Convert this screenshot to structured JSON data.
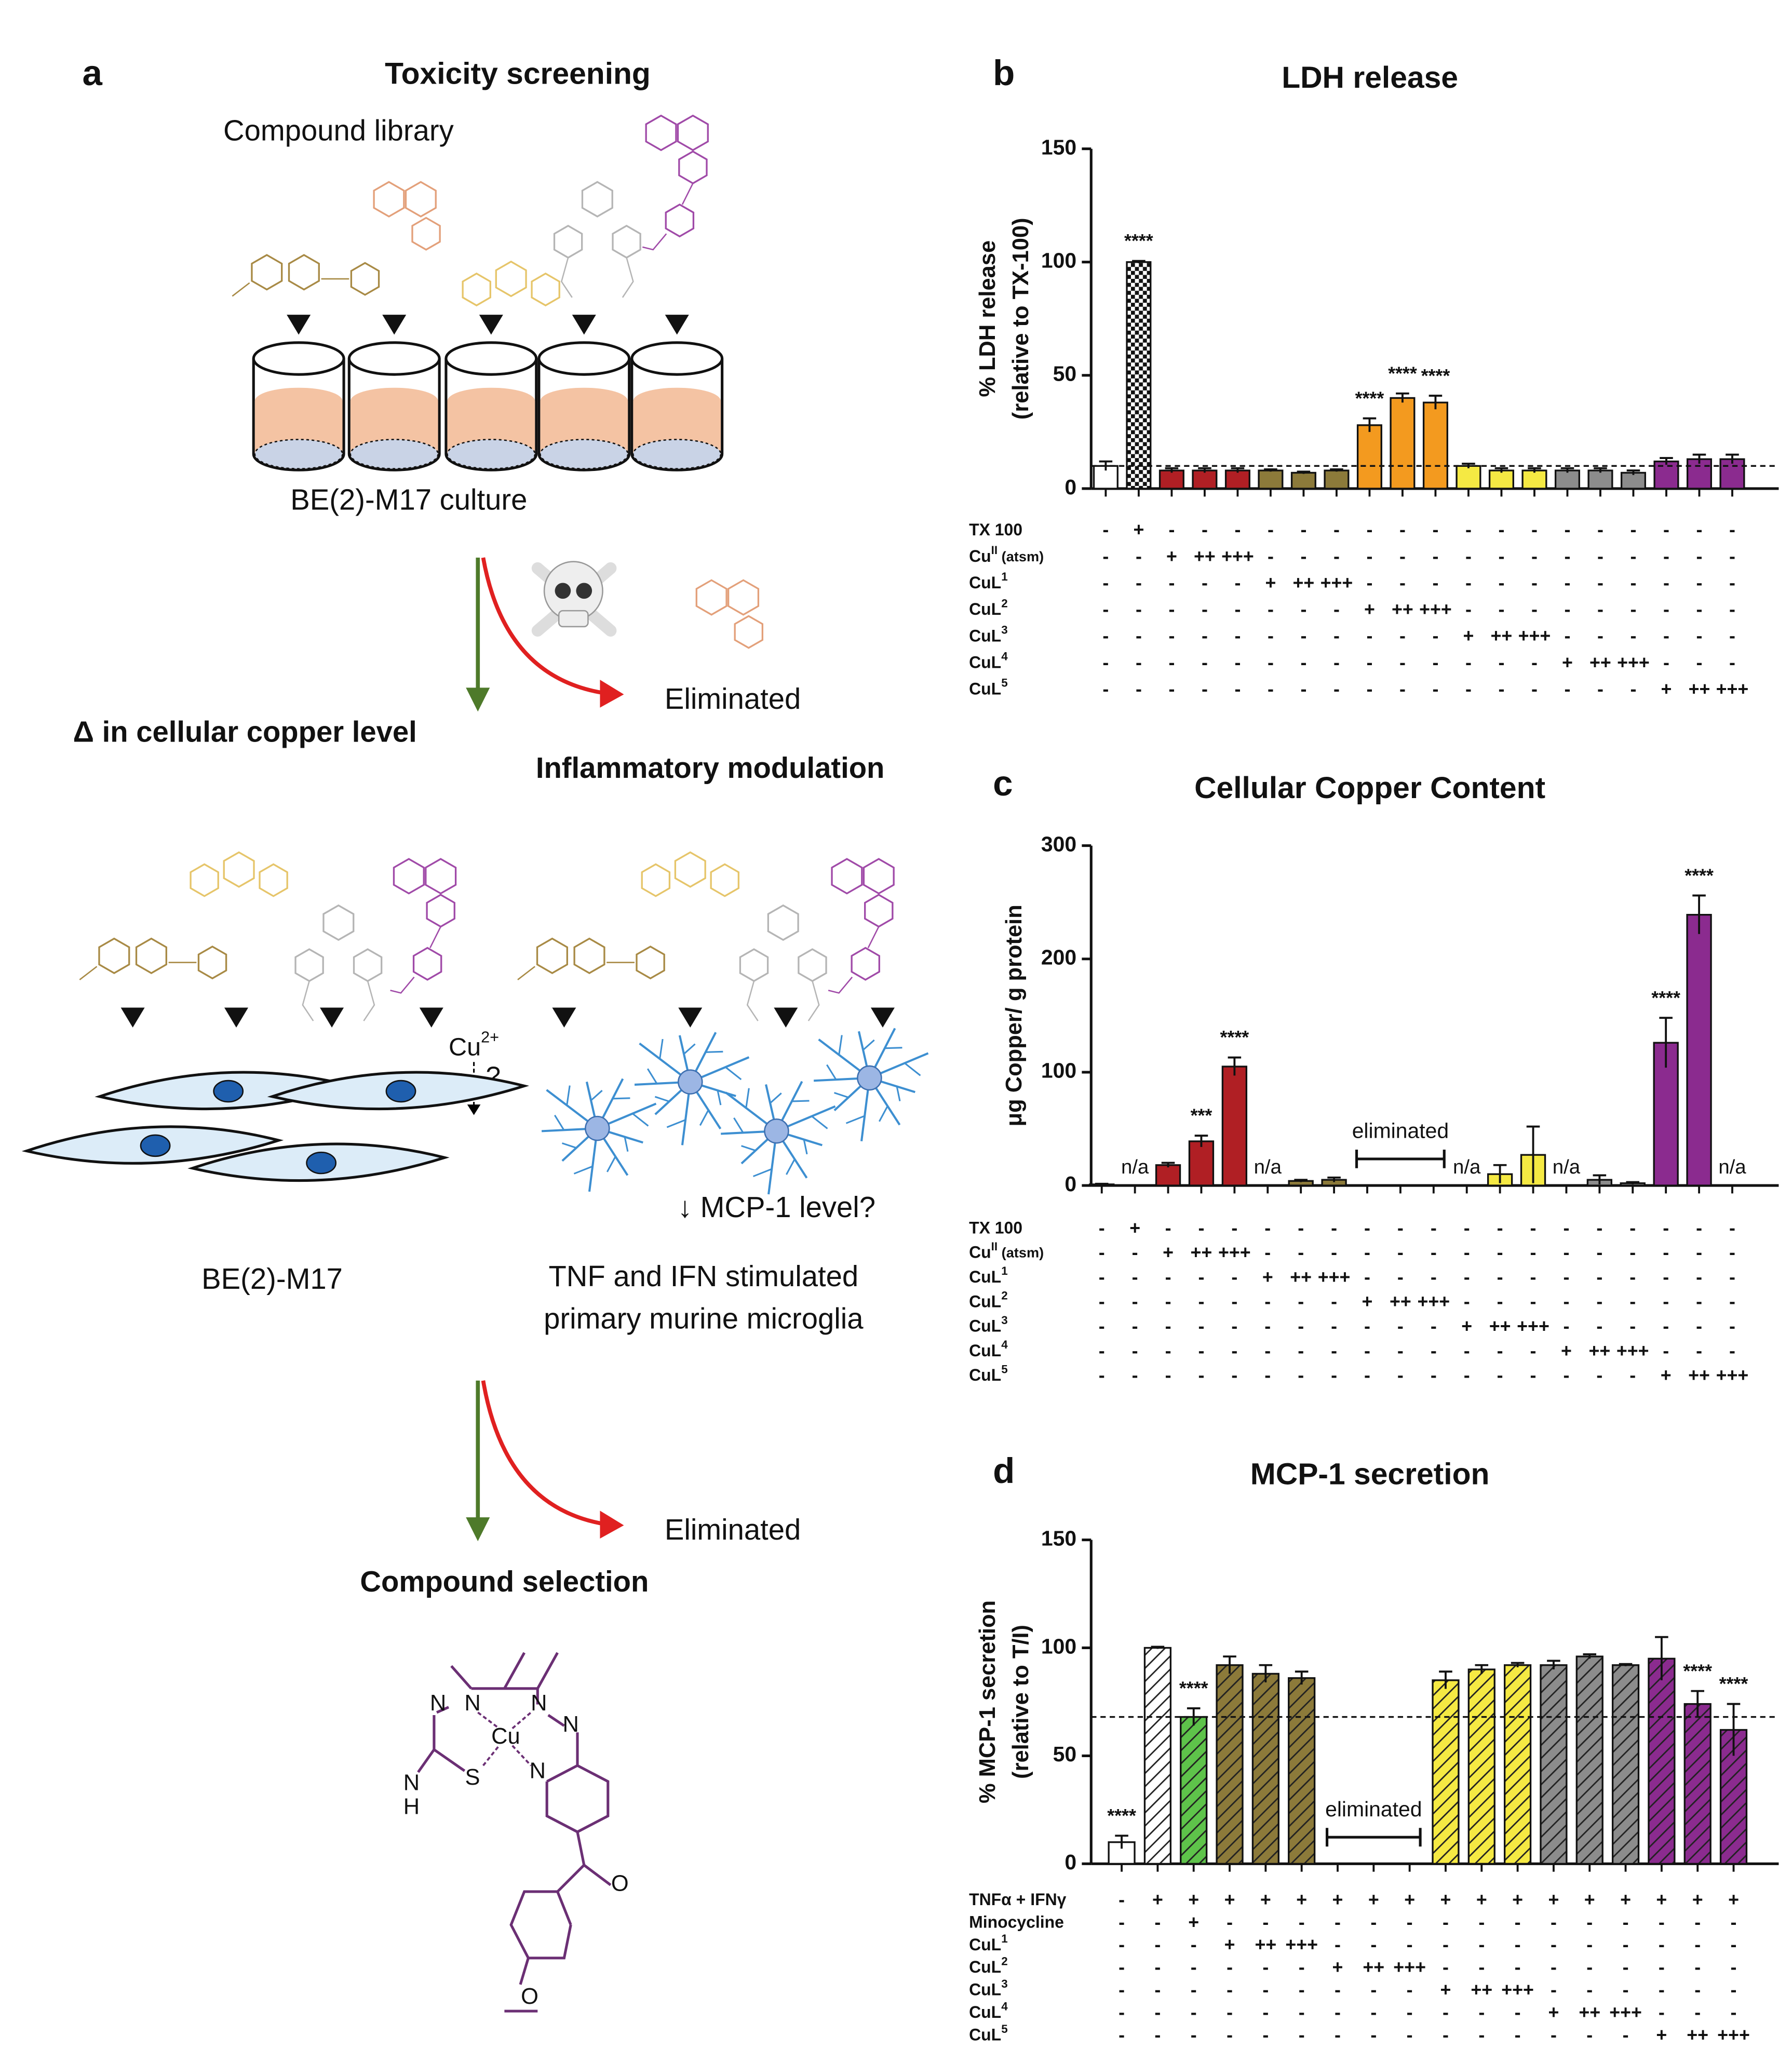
{
  "panel_a": {
    "label": "a",
    "title": "Toxicity screening",
    "library": "Compound library",
    "culture": "BE(2)-M17 culture",
    "eliminated_first": "Eliminated",
    "copper_step": "Δ in cellular copper level",
    "inflammation_step": "Inflammatory modulation",
    "copper_ion": {
      "base": "Cu",
      "sup": "2+"
    },
    "question": "?",
    "mcp_question": "↓ MCP-1 level?",
    "cell_line": "BE(2)-M17",
    "microglia": [
      "TNF and IFN stimulated",
      "primary murine microglia"
    ],
    "eliminated_second": "Eliminated",
    "selection": "Compound selection",
    "selected_atoms": [
      "N",
      "N",
      "N",
      "N",
      "Cu",
      "S",
      "N",
      "N",
      "H",
      "O",
      "O"
    ]
  },
  "chart_data": [
    {
      "type": "bar",
      "label": "b",
      "title": "LDH release",
      "ylabel": [
        "% LDH release",
        "(relative to TX-100)"
      ],
      "ylim": [
        0,
        150
      ],
      "yticks": [
        0,
        50,
        100,
        150
      ],
      "values": [
        10,
        100,
        8,
        8,
        8,
        8,
        7,
        8,
        28,
        40,
        38,
        10,
        8,
        8,
        8,
        8,
        7,
        12,
        13,
        13
      ],
      "errors": [
        2,
        0.5,
        1,
        1,
        1,
        0.5,
        0.5,
        0.5,
        3,
        2,
        3,
        1,
        1,
        1,
        1,
        1,
        1,
        1.5,
        2,
        2
      ],
      "colors": [
        "#ffffff",
        "#ffffff",
        "#b01f24",
        "#b01f24",
        "#b01f24",
        "#8c7a3a",
        "#8c7a3a",
        "#8c7a3a",
        "#f39a1f",
        "#f39a1f",
        "#f39a1f",
        "#f5e943",
        "#f5e943",
        "#f5e943",
        "#8c8c8c",
        "#8c8c8c",
        "#8c8c8c",
        "#8b2b8f",
        "#8b2b8f",
        "#8b2b8f"
      ],
      "fills": [
        "solid",
        "checker",
        "solid",
        "solid",
        "solid",
        "solid",
        "solid",
        "solid",
        "solid",
        "solid",
        "solid",
        "solid",
        "solid",
        "solid",
        "solid",
        "solid",
        "solid",
        "solid",
        "solid",
        "solid"
      ],
      "significance": [
        null,
        "****",
        null,
        null,
        null,
        null,
        null,
        null,
        "****",
        "****",
        "****",
        null,
        null,
        null,
        null,
        null,
        null,
        null,
        null,
        null
      ],
      "reference_line": 10,
      "treatments": [
        {
          "label": {
            "base": "TX 100"
          },
          "marks": [
            "-",
            "+",
            "-",
            "-",
            "-",
            "-",
            "-",
            "-",
            "-",
            "-",
            "-",
            "-",
            "-",
            "-",
            "-",
            "-",
            "-",
            "-",
            "-",
            "-"
          ]
        },
        {
          "label": {
            "base": "Cu",
            "sup": "II",
            "rest": " (atsm)"
          },
          "marks": [
            "-",
            "-",
            "+",
            "++",
            "+++",
            "-",
            "-",
            "-",
            "-",
            "-",
            "-",
            "-",
            "-",
            "-",
            "-",
            "-",
            "-",
            "-",
            "-",
            "-"
          ]
        },
        {
          "label": {
            "base": "CuL",
            "sup": "1"
          },
          "marks": [
            "-",
            "-",
            "-",
            "-",
            "-",
            "+",
            "++",
            "+++",
            "-",
            "-",
            "-",
            "-",
            "-",
            "-",
            "-",
            "-",
            "-",
            "-",
            "-",
            "-"
          ]
        },
        {
          "label": {
            "base": "CuL",
            "sup": "2"
          },
          "marks": [
            "-",
            "-",
            "-",
            "-",
            "-",
            "-",
            "-",
            "-",
            "+",
            "++",
            "+++",
            "-",
            "-",
            "-",
            "-",
            "-",
            "-",
            "-",
            "-",
            "-"
          ]
        },
        {
          "label": {
            "base": "CuL",
            "sup": "3"
          },
          "marks": [
            "-",
            "-",
            "-",
            "-",
            "-",
            "-",
            "-",
            "-",
            "-",
            "-",
            "-",
            "+",
            "++",
            "+++",
            "-",
            "-",
            "-",
            "-",
            "-",
            "-"
          ]
        },
        {
          "label": {
            "base": "CuL",
            "sup": "4"
          },
          "marks": [
            "-",
            "-",
            "-",
            "-",
            "-",
            "-",
            "-",
            "-",
            "-",
            "-",
            "-",
            "-",
            "-",
            "-",
            "+",
            "++",
            "+++",
            "-",
            "-",
            "-"
          ]
        },
        {
          "label": {
            "base": "CuL",
            "sup": "5"
          },
          "marks": [
            "-",
            "-",
            "-",
            "-",
            "-",
            "-",
            "-",
            "-",
            "-",
            "-",
            "-",
            "-",
            "-",
            "-",
            "-",
            "-",
            "-",
            "+",
            "++",
            "+++"
          ]
        }
      ]
    },
    {
      "type": "bar",
      "label": "c",
      "title": "Cellular Copper Content",
      "ylabel": [
        "μg Copper/ g protein"
      ],
      "ylim": [
        0,
        300
      ],
      "yticks": [
        0,
        100,
        200,
        300
      ],
      "values": [
        1,
        null,
        18,
        39,
        105,
        null,
        4,
        5,
        null,
        null,
        null,
        null,
        10,
        27,
        null,
        5,
        2,
        126,
        239,
        null
      ],
      "value_labels": [
        null,
        "n/a",
        null,
        null,
        null,
        "n/a",
        null,
        null,
        null,
        null,
        null,
        "n/a",
        null,
        null,
        "n/a",
        null,
        null,
        null,
        null,
        "n/a"
      ],
      "errors": [
        0.5,
        null,
        2,
        5,
        8,
        null,
        1,
        2,
        null,
        null,
        null,
        null,
        8,
        25,
        null,
        4,
        1,
        22,
        17,
        null
      ],
      "colors": [
        "#ffffff",
        "#ffffff",
        "#b01f24",
        "#b01f24",
        "#b01f24",
        "#8c7a3a",
        "#8c7a3a",
        "#8c7a3a",
        "#f39a1f",
        "#f39a1f",
        "#f39a1f",
        "#f5e943",
        "#f5e943",
        "#f5e943",
        "#8c8c8c",
        "#8c8c8c",
        "#8c8c8c",
        "#8b2b8f",
        "#8b2b8f",
        "#8b2b8f"
      ],
      "fills": [
        "solid",
        "solid",
        "solid",
        "solid",
        "solid",
        "solid",
        "solid",
        "solid",
        "solid",
        "solid",
        "solid",
        "solid",
        "solid",
        "solid",
        "solid",
        "solid",
        "solid",
        "solid",
        "solid",
        "solid"
      ],
      "significance": [
        null,
        null,
        null,
        "***",
        "****",
        null,
        null,
        null,
        null,
        null,
        null,
        null,
        null,
        null,
        null,
        null,
        null,
        "****",
        "****",
        null
      ],
      "annotation": "eliminated",
      "treatments": [
        {
          "label": {
            "base": "TX 100"
          },
          "marks": [
            "-",
            "+",
            "-",
            "-",
            "-",
            "-",
            "-",
            "-",
            "-",
            "-",
            "-",
            "-",
            "-",
            "-",
            "-",
            "-",
            "-",
            "-",
            "-",
            "-"
          ]
        },
        {
          "label": {
            "base": "Cu",
            "sup": "II",
            "rest": " (atsm)"
          },
          "marks": [
            "-",
            "-",
            "+",
            "++",
            "+++",
            "-",
            "-",
            "-",
            "-",
            "-",
            "-",
            "-",
            "-",
            "-",
            "-",
            "-",
            "-",
            "-",
            "-",
            "-"
          ]
        },
        {
          "label": {
            "base": "CuL",
            "sup": "1"
          },
          "marks": [
            "-",
            "-",
            "-",
            "-",
            "-",
            "+",
            "++",
            "+++",
            "-",
            "-",
            "-",
            "-",
            "-",
            "-",
            "-",
            "-",
            "-",
            "-",
            "-",
            "-"
          ]
        },
        {
          "label": {
            "base": "CuL",
            "sup": "2"
          },
          "marks": [
            "-",
            "-",
            "-",
            "-",
            "-",
            "-",
            "-",
            "-",
            "+",
            "++",
            "+++",
            "-",
            "-",
            "-",
            "-",
            "-",
            "-",
            "-",
            "-",
            "-"
          ]
        },
        {
          "label": {
            "base": "CuL",
            "sup": "3"
          },
          "marks": [
            "-",
            "-",
            "-",
            "-",
            "-",
            "-",
            "-",
            "-",
            "-",
            "-",
            "-",
            "+",
            "++",
            "+++",
            "-",
            "-",
            "-",
            "-",
            "-",
            "-"
          ]
        },
        {
          "label": {
            "base": "CuL",
            "sup": "4"
          },
          "marks": [
            "-",
            "-",
            "-",
            "-",
            "-",
            "-",
            "-",
            "-",
            "-",
            "-",
            "-",
            "-",
            "-",
            "-",
            "+",
            "++",
            "+++",
            "-",
            "-",
            "-"
          ]
        },
        {
          "label": {
            "base": "CuL",
            "sup": "5"
          },
          "marks": [
            "-",
            "-",
            "-",
            "-",
            "-",
            "-",
            "-",
            "-",
            "-",
            "-",
            "-",
            "-",
            "-",
            "-",
            "-",
            "-",
            "-",
            "+",
            "++",
            "+++"
          ]
        }
      ]
    },
    {
      "type": "bar",
      "label": "d",
      "title": "MCP-1 secretion",
      "ylabel": [
        "% MCP-1 secretion",
        "(relative to T/I)"
      ],
      "ylim": [
        0,
        150
      ],
      "yticks": [
        0,
        50,
        100,
        150
      ],
      "values": [
        10,
        100,
        68,
        92,
        88,
        86,
        null,
        null,
        null,
        85,
        90,
        92,
        92,
        96,
        92,
        95,
        74,
        62
      ],
      "errors": [
        3,
        0.5,
        4,
        4,
        4,
        3,
        null,
        null,
        null,
        4,
        2,
        1,
        2,
        1,
        0.5,
        10,
        6,
        12
      ],
      "colors": [
        "#ffffff",
        "#ffffff",
        "#5ec34a",
        "#8c7a3a",
        "#8c7a3a",
        "#8c7a3a",
        "#f39a1f",
        "#f39a1f",
        "#f39a1f",
        "#f5e943",
        "#f5e943",
        "#f5e943",
        "#8c8c8c",
        "#8c8c8c",
        "#8c8c8c",
        "#8b2b8f",
        "#8b2b8f",
        "#8b2b8f"
      ],
      "fills": [
        "solid",
        "hatch",
        "hatch",
        "hatch",
        "hatch",
        "hatch",
        "hatch",
        "hatch",
        "hatch",
        "hatch",
        "hatch",
        "hatch",
        "hatch",
        "hatch",
        "hatch",
        "hatch",
        "hatch",
        "hatch"
      ],
      "significance": [
        "****",
        null,
        "****",
        null,
        null,
        null,
        null,
        null,
        null,
        null,
        null,
        null,
        null,
        null,
        null,
        null,
        "****",
        "****"
      ],
      "reference_line": 68,
      "annotation": "eliminated",
      "treatments": [
        {
          "label": {
            "base": "TNFα + IFNγ"
          },
          "marks": [
            "-",
            "+",
            "+",
            "+",
            "+",
            "+",
            "+",
            "+",
            "+",
            "+",
            "+",
            "+",
            "+",
            "+",
            "+",
            "+",
            "+",
            "+"
          ]
        },
        {
          "label": {
            "base": "Minocycline"
          },
          "marks": [
            "-",
            "-",
            "+",
            "-",
            "-",
            "-",
            "-",
            "-",
            "-",
            "-",
            "-",
            "-",
            "-",
            "-",
            "-",
            "-",
            "-",
            "-"
          ]
        },
        {
          "label": {
            "base": "CuL",
            "sup": "1"
          },
          "marks": [
            "-",
            "-",
            "-",
            "+",
            "++",
            "+++",
            "-",
            "-",
            "-",
            "-",
            "-",
            "-",
            "-",
            "-",
            "-",
            "-",
            "-",
            "-"
          ]
        },
        {
          "label": {
            "base": "CuL",
            "sup": "2"
          },
          "marks": [
            "-",
            "-",
            "-",
            "-",
            "-",
            "-",
            "+",
            "++",
            "+++",
            "-",
            "-",
            "-",
            "-",
            "-",
            "-",
            "-",
            "-",
            "-"
          ]
        },
        {
          "label": {
            "base": "CuL",
            "sup": "3"
          },
          "marks": [
            "-",
            "-",
            "-",
            "-",
            "-",
            "-",
            "-",
            "-",
            "-",
            "+",
            "++",
            "+++",
            "-",
            "-",
            "-",
            "-",
            "-",
            "-"
          ]
        },
        {
          "label": {
            "base": "CuL",
            "sup": "4"
          },
          "marks": [
            "-",
            "-",
            "-",
            "-",
            "-",
            "-",
            "-",
            "-",
            "-",
            "-",
            "-",
            "-",
            "+",
            "++",
            "+++",
            "-",
            "-",
            "-"
          ]
        },
        {
          "label": {
            "base": "CuL",
            "sup": "5"
          },
          "marks": [
            "-",
            "-",
            "-",
            "-",
            "-",
            "-",
            "-",
            "-",
            "-",
            "-",
            "-",
            "-",
            "-",
            "-",
            "-",
            "+",
            "++",
            "+++"
          ]
        }
      ]
    }
  ]
}
